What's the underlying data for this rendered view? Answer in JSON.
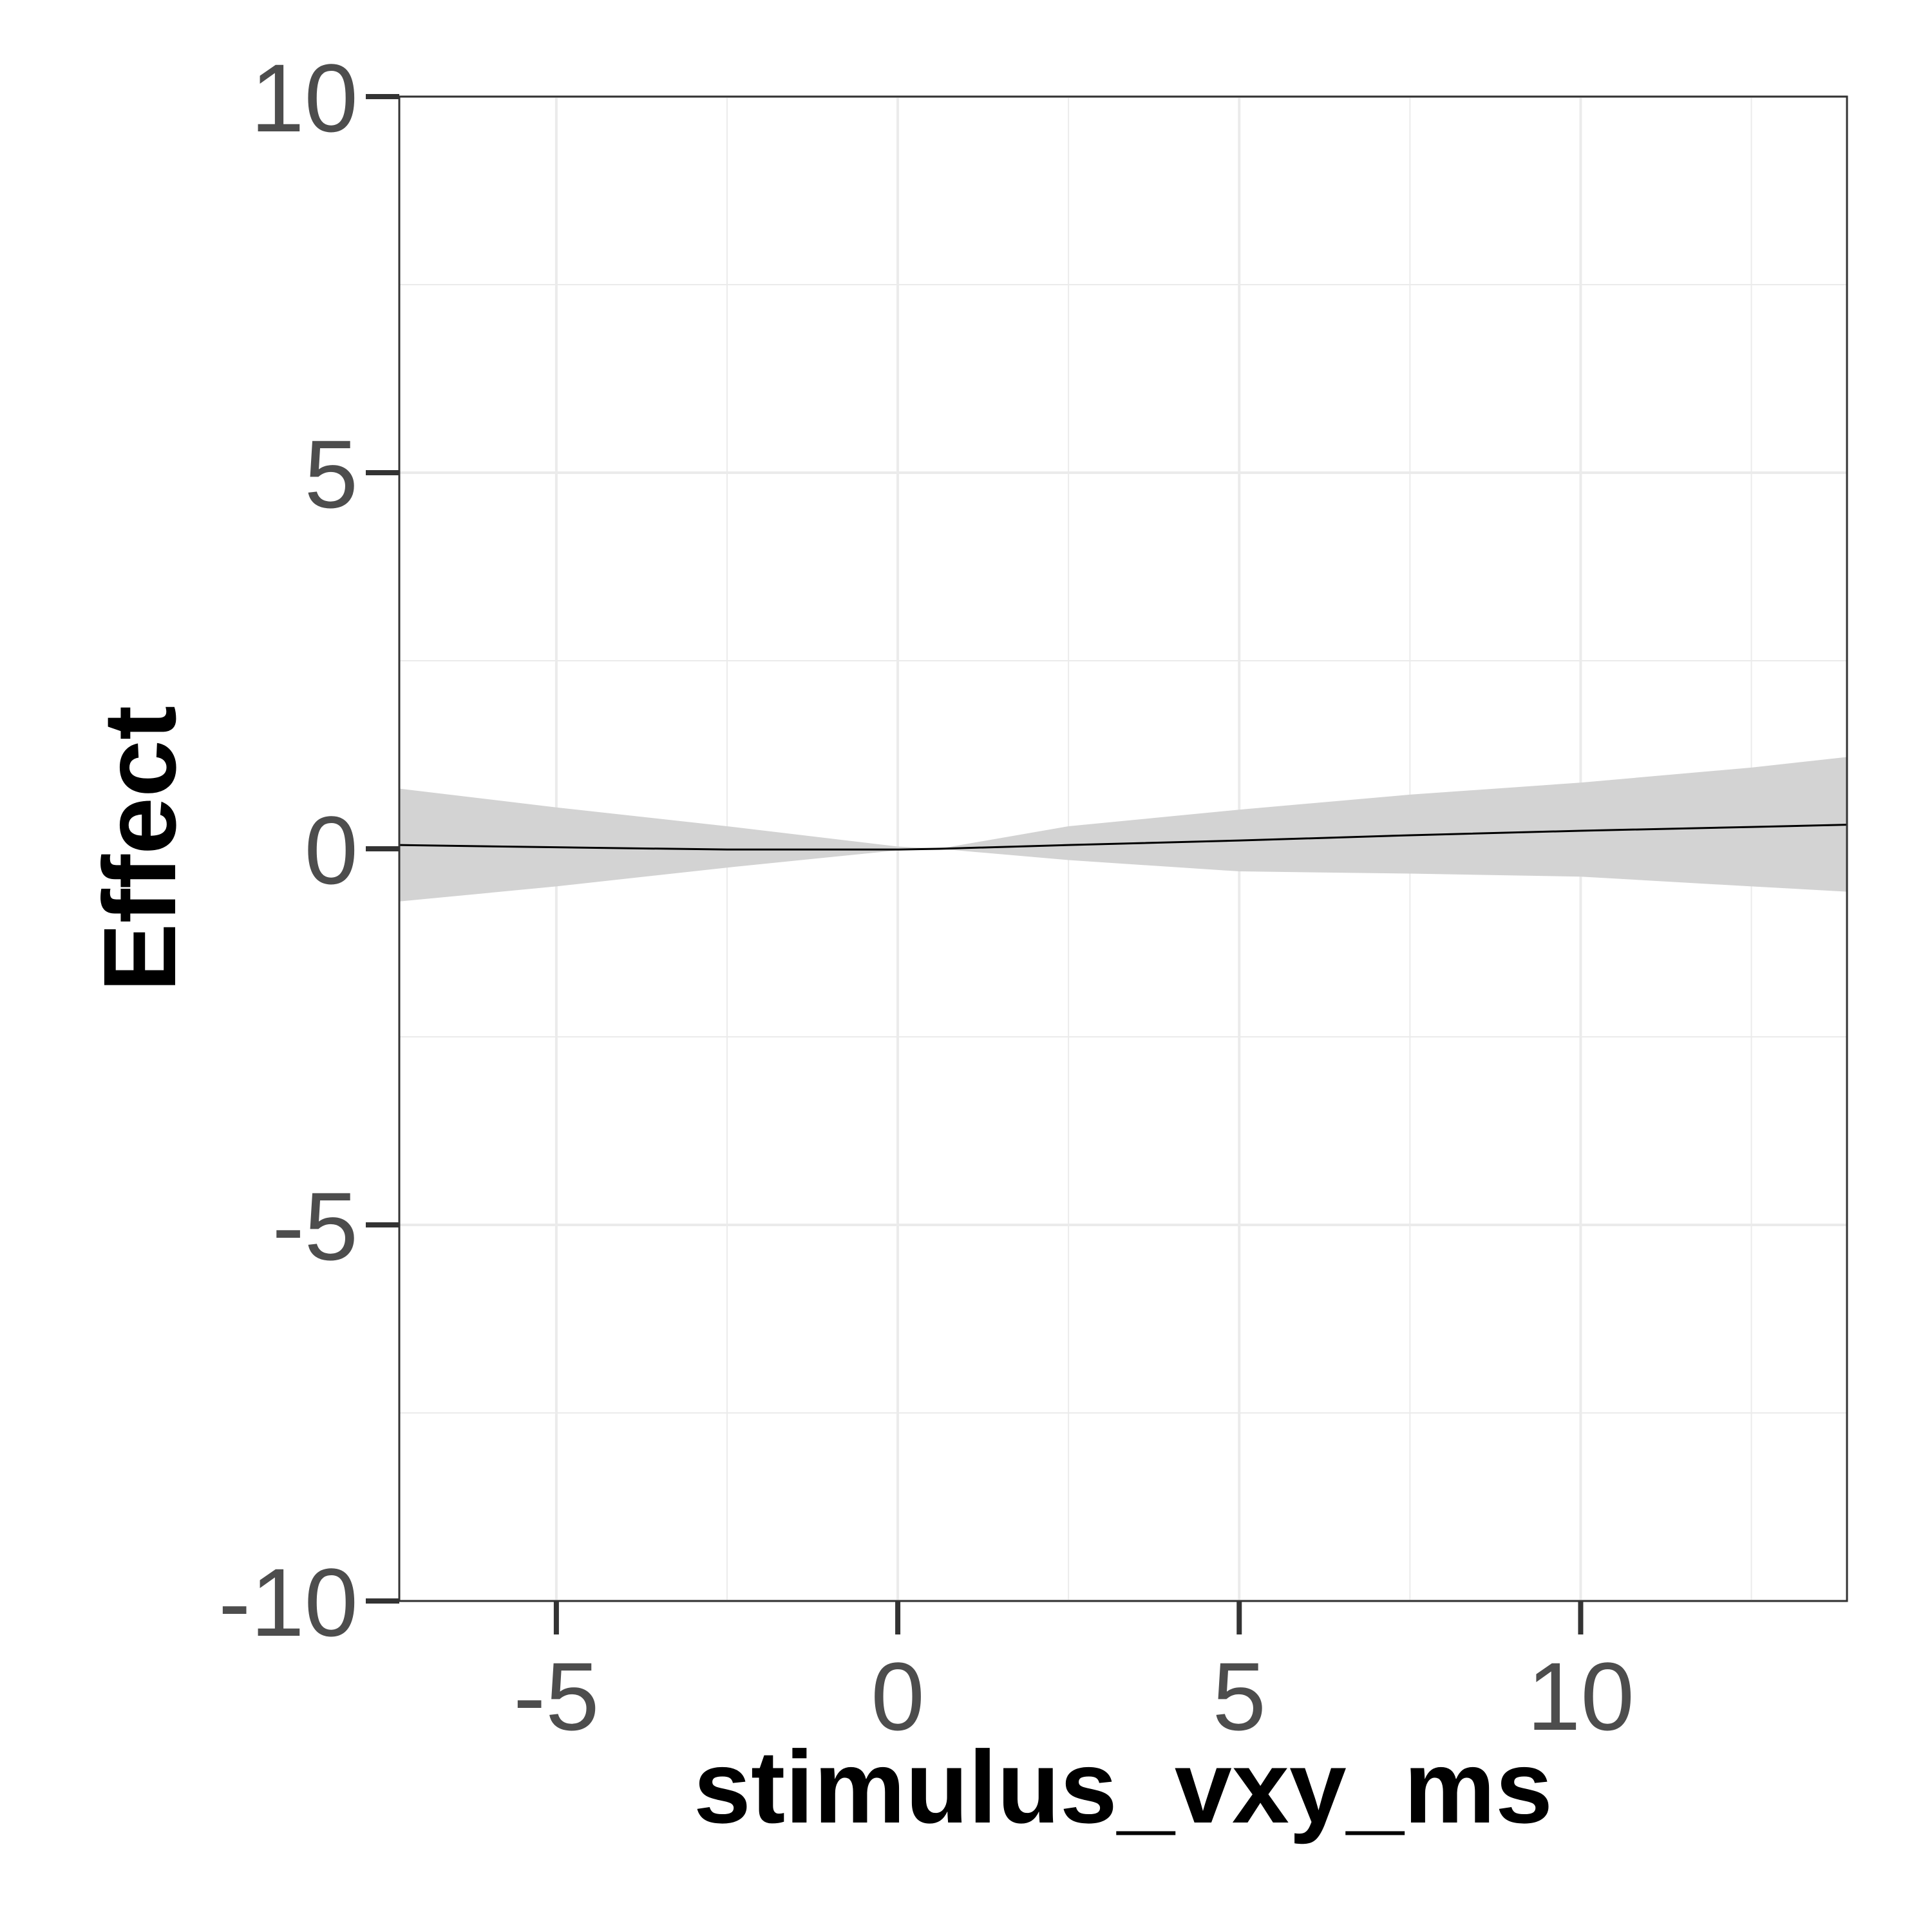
{
  "chart_data": {
    "type": "line",
    "xlabel": "stimulus_vxy_ms",
    "ylabel": "Effect",
    "xlim": [
      -7.3,
      13.9
    ],
    "ylim": [
      -10,
      10
    ],
    "x_ticks": [
      -5,
      0,
      5,
      10
    ],
    "y_ticks": [
      -10,
      -5,
      0,
      5,
      10
    ],
    "grid": true,
    "series": [
      {
        "x": [
          -7.3,
          -5,
          -2.5,
          0,
          0.6,
          2.5,
          5,
          7.5,
          10,
          12.5,
          13.9
        ],
        "values": [
          0.05,
          0.02,
          -0.01,
          -0.01,
          0.0,
          0.05,
          0.11,
          0.18,
          0.24,
          0.29,
          0.32
        ],
        "lower": [
          -0.7,
          -0.5,
          -0.25,
          -0.02,
          0.0,
          -0.15,
          -0.3,
          -0.33,
          -0.37,
          -0.5,
          -0.57
        ],
        "upper": [
          0.8,
          0.55,
          0.3,
          0.03,
          0.0,
          0.3,
          0.52,
          0.72,
          0.88,
          1.08,
          1.22
        ]
      }
    ],
    "colors": {
      "line": "#000000",
      "ribbon": "#d3d3d3",
      "grid": "#ebebeb",
      "panel_border": "#333333",
      "tick_label": "#4d4d4d"
    }
  }
}
